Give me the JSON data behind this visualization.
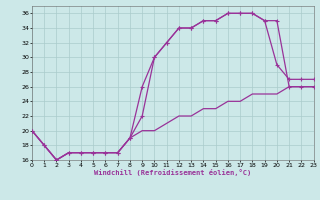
{
  "background_color": "#cce8e8",
  "grid_color": "#aacccc",
  "line_color": "#993399",
  "xlim": [
    0,
    23
  ],
  "ylim": [
    16,
    37
  ],
  "xticks": [
    0,
    1,
    2,
    3,
    4,
    5,
    6,
    7,
    8,
    9,
    10,
    11,
    12,
    13,
    14,
    15,
    16,
    17,
    18,
    19,
    20,
    21,
    22,
    23
  ],
  "yticks": [
    16,
    18,
    20,
    22,
    24,
    26,
    28,
    30,
    32,
    34,
    36
  ],
  "xlabel": "Windchill (Refroidissement éolien,°C)",
  "line1_x": [
    0,
    1,
    2,
    3,
    4,
    5,
    6,
    7,
    8,
    9,
    10,
    11,
    12,
    13,
    14,
    15,
    16,
    17,
    18,
    19,
    20,
    21,
    22,
    23
  ],
  "line1_y": [
    20,
    18,
    16,
    17,
    17,
    17,
    17,
    17,
    19,
    22,
    30,
    32,
    34,
    34,
    35,
    35,
    36,
    36,
    36,
    35,
    29,
    27,
    27,
    27
  ],
  "line2_x": [
    0,
    1,
    2,
    3,
    4,
    5,
    6,
    7,
    8,
    9,
    10,
    11,
    12,
    13,
    14,
    15,
    16,
    17,
    18,
    19,
    20,
    21,
    22,
    23
  ],
  "line2_y": [
    20,
    18,
    16,
    17,
    17,
    17,
    17,
    17,
    19,
    26,
    30,
    32,
    34,
    34,
    35,
    35,
    36,
    36,
    36,
    35,
    35,
    26,
    26,
    26
  ],
  "line3_x": [
    0,
    1,
    2,
    3,
    4,
    5,
    6,
    7,
    8,
    9,
    10,
    11,
    12,
    13,
    14,
    15,
    16,
    17,
    18,
    19,
    20,
    21,
    22,
    23
  ],
  "line3_y": [
    20,
    18,
    16,
    17,
    17,
    17,
    17,
    17,
    19,
    20,
    20,
    21,
    22,
    22,
    23,
    23,
    24,
    24,
    25,
    25,
    25,
    26,
    26,
    26
  ]
}
